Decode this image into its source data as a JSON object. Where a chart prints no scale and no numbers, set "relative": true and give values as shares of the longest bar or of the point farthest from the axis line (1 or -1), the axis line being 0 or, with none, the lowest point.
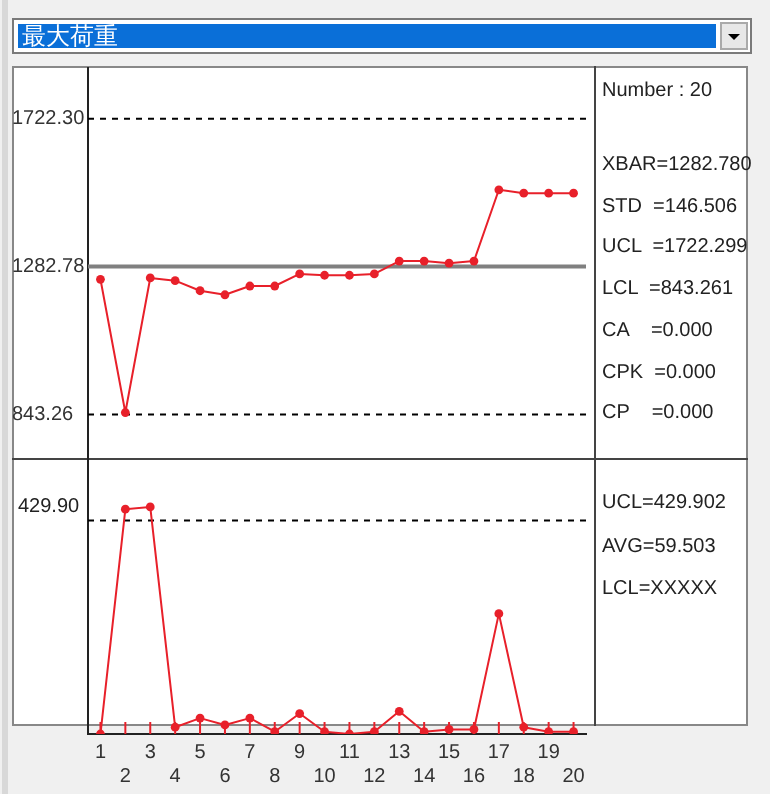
{
  "chart_data": [
    {
      "type": "line",
      "title": "最大荷重",
      "categories": [
        "1",
        "2",
        "3",
        "4",
        "5",
        "6",
        "7",
        "8",
        "9",
        "10",
        "11",
        "12",
        "13",
        "14",
        "15",
        "16",
        "17",
        "18",
        "19",
        "20"
      ],
      "series": [
        {
          "color": "#e8202a",
          "values": [
            1245,
            849,
            1249,
            1241,
            1211,
            1199,
            1225,
            1225,
            1261,
            1257,
            1257,
            1261,
            1299,
            1299,
            1293,
            1299,
            1511,
            1501,
            1501,
            1501
          ]
        }
      ],
      "ylim": [
        696,
        1873
      ],
      "yticks": [
        {
          "value": 843.26,
          "label": "843.26"
        },
        {
          "value": 1282.78,
          "label": "1282.78"
        },
        {
          "value": 1722.3,
          "label": "1722.30"
        }
      ],
      "ref_lines": [
        {
          "axis": "y",
          "value": 1722.3,
          "line_style": "dashed",
          "color": "#000000"
        },
        {
          "axis": "y",
          "value": 1282.78,
          "line_style": "solid",
          "color": "#808080"
        },
        {
          "axis": "y",
          "value": 843.26,
          "line_style": "dashed",
          "color": "#000000"
        }
      ],
      "annotations": [
        "Number : 20",
        "XBAR=1282.780",
        "STD  =146.506",
        "UCL  =1722.299",
        "LCL  =843.261",
        "CA    =0.000",
        "CPK  =0.000",
        "CP    =0.000"
      ],
      "tick_labels": "y",
      "marker": "circle",
      "line_style": "solid"
    },
    {
      "type": "line",
      "categories": [
        "1",
        "2",
        "3",
        "4",
        "5",
        "6",
        "7",
        "8",
        "9",
        "10",
        "11",
        "12",
        "13",
        "14",
        "15",
        "16",
        "17",
        "18",
        "19",
        "20"
      ],
      "series": [
        {
          "color": "#e8202a",
          "values": [
            0,
            0.99,
            1,
            0.03,
            0.07,
            0.04,
            0.07,
            0.01,
            0.09,
            0.01,
            0,
            0.01,
            0.1,
            0.01,
            0.02,
            0.02,
            0.53,
            0.03,
            0.01,
            0.01
          ]
        }
      ],
      "relative": true,
      "ref_lines": [
        {
          "axis": "y",
          "value": 0.94,
          "line_style": "dashed",
          "color": "#000000"
        }
      ],
      "annotations": [
        "429.90",
        "UCL=429.902",
        "AVG=59.503",
        "LCL=XXXXX"
      ],
      "marker": "circle",
      "line_style": "solid"
    }
  ]
}
